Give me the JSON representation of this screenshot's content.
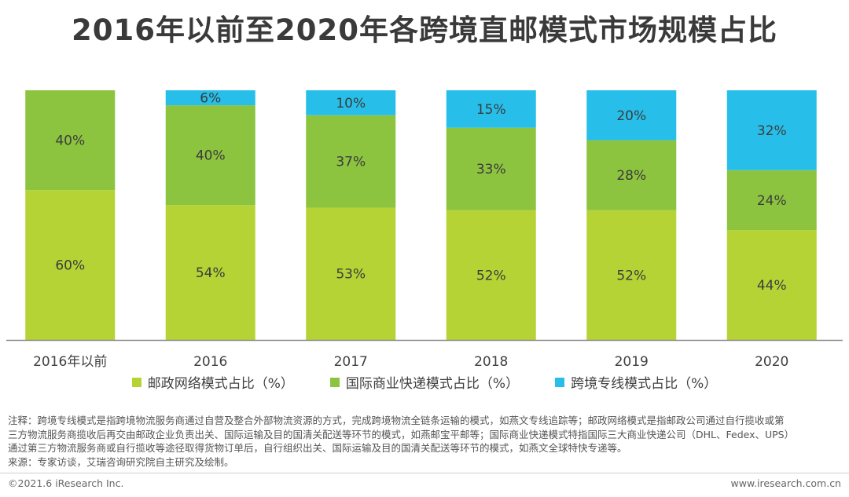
{
  "header": {
    "title": "2016年以前至2020年各跨境直邮模式市场规模占比"
  },
  "colors": {
    "postal": "#b5d334",
    "commercial": "#8cc33f",
    "dedicated": "#27bfe9",
    "axis": "#8a8a8a"
  },
  "chart_data": {
    "type": "bar",
    "stacked": true,
    "title": "2016年以前至2020年各跨境直邮模式市场规模占比",
    "categories": [
      "2016年以前",
      "2016",
      "2017",
      "2018",
      "2019",
      "2020"
    ],
    "series": [
      {
        "name": "邮政网络模式占比（%）",
        "values": [
          60,
          54,
          53,
          52,
          52,
          44
        ],
        "labels": [
          "60%",
          "54%",
          "53%",
          "52%",
          "52%",
          "44%"
        ]
      },
      {
        "name": "国际商业快递模式占比（%）",
        "values": [
          40,
          40,
          37,
          33,
          28,
          24
        ],
        "labels": [
          "40%",
          "40%",
          "37%",
          "33%",
          "28%",
          "24%"
        ]
      },
      {
        "name": "跨境专线模式占比（%）",
        "values": [
          null,
          6,
          10,
          15,
          20,
          32
        ],
        "labels": [
          null,
          "6%",
          "10%",
          "15%",
          "20%",
          "32%"
        ]
      }
    ],
    "xlabel": "",
    "ylabel": "",
    "ylim": [
      0,
      100
    ],
    "legend_position": "bottom-center"
  },
  "legend": {
    "postal": "邮政网络模式占比（%）",
    "commercial": "国际商业快递模式占比（%）",
    "dedicated": "跨境专线模式占比（%）"
  },
  "notes": {
    "line1": "注释：跨境专线模式是指跨境物流服务商通过自营及整合外部物流资源的方式，完成跨境物流全链条运输的模式，如燕文专线追踪等；邮政网络模式是指邮政公司通过自行揽收或第",
    "line2": "三方物流服务商揽收后再交由邮政企业负责出关、国际运输及目的国清关配送等环节的模式，如燕邮宝平邮等；国际商业快递模式特指国际三大商业快递公司（DHL、Fedex、UPS）",
    "line3": "通过第三方物流服务商或自行揽收等途径取得货物订单后，自行组织出关、国际运输及目的国清关配送等环节的模式，如燕文全球特快专递等。",
    "source": "来源：专家访谈，艾瑞咨询研究院自主研究及绘制。"
  },
  "footer": {
    "copyright": "©2021.6 iResearch Inc.",
    "website": "www.iresearch.com.cn"
  }
}
